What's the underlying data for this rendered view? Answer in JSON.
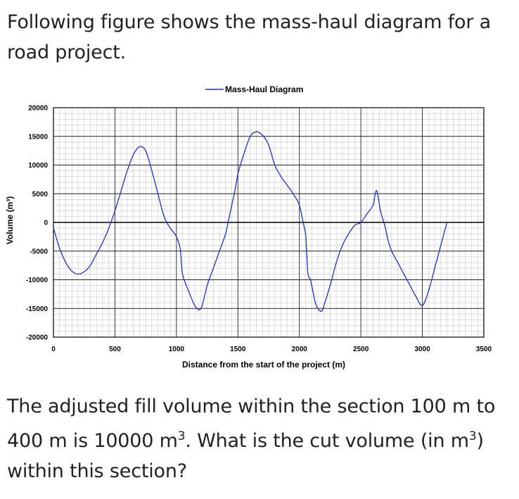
{
  "question": {
    "intro": "Following figure shows the mass-haul diagram for a road project.",
    "ask_pre": "The adjusted fill volume within the section 100 m to 400 m is 10000 m",
    "ask_sup1": "3",
    "ask_mid": ". What is the cut volume (in m",
    "ask_sup2": "3",
    "ask_post": ") within this section?"
  },
  "chart_data": {
    "type": "line",
    "title": "",
    "xlabel": "Distance from the start of the project (m)",
    "ylabel": "Volume (m³)",
    "xlim": [
      0,
      3500
    ],
    "ylim": [
      -20000,
      20000
    ],
    "x_ticks": [
      0,
      500,
      1000,
      1500,
      2000,
      2500,
      3000,
      3500
    ],
    "y_ticks": [
      20000,
      15000,
      10000,
      5000,
      0,
      -5000,
      -10000,
      -15000,
      -20000
    ],
    "grid": true,
    "legend": "top-center",
    "line_color": "#1f2ecc",
    "series": [
      {
        "name": "Mass-Haul Diagram",
        "x": [
          0,
          50,
          100,
          150,
          200,
          250,
          300,
          350,
          400,
          450,
          500,
          550,
          600,
          650,
          700,
          750,
          800,
          850,
          900,
          950,
          980,
          1000,
          1030,
          1050,
          1100,
          1150,
          1200,
          1250,
          1300,
          1350,
          1400,
          1420,
          1450,
          1480,
          1500,
          1520,
          1550,
          1600,
          1650,
          1700,
          1750,
          1800,
          1850,
          1900,
          1950,
          2000,
          2030,
          2050,
          2060,
          2070,
          2090,
          2110,
          2130,
          2150,
          2180,
          2200,
          2250,
          2300,
          2350,
          2400,
          2450,
          2500,
          2550,
          2600,
          2610,
          2630,
          2660,
          2700,
          2720,
          2750,
          2800,
          2850,
          2900,
          2950,
          3000,
          3050,
          3100,
          3150,
          3200
        ],
        "y": [
          -1000,
          -4500,
          -7000,
          -8500,
          -9000,
          -8600,
          -7500,
          -5500,
          -3500,
          -1000,
          2000,
          5500,
          9000,
          11800,
          13200,
          12500,
          9000,
          5000,
          1000,
          -1000,
          -1800,
          -2500,
          -4500,
          -9000,
          -12000,
          -14500,
          -15000,
          -11000,
          -8000,
          -5000,
          -2000,
          0,
          3000,
          6000,
          8500,
          10000,
          12000,
          15000,
          15800,
          15200,
          13500,
          10000,
          8000,
          6500,
          5000,
          3000,
          0,
          -2000,
          -5500,
          -9000,
          -10000,
          -12000,
          -14000,
          -15000,
          -15500,
          -14500,
          -11000,
          -7000,
          -4000,
          -2000,
          -500,
          0,
          1500,
          3000,
          4200,
          5500,
          2000,
          -1000,
          -3000,
          -5000,
          -7000,
          -9000,
          -11000,
          -13000,
          -14500,
          -12000,
          -8000,
          -4000,
          0
        ]
      }
    ]
  }
}
